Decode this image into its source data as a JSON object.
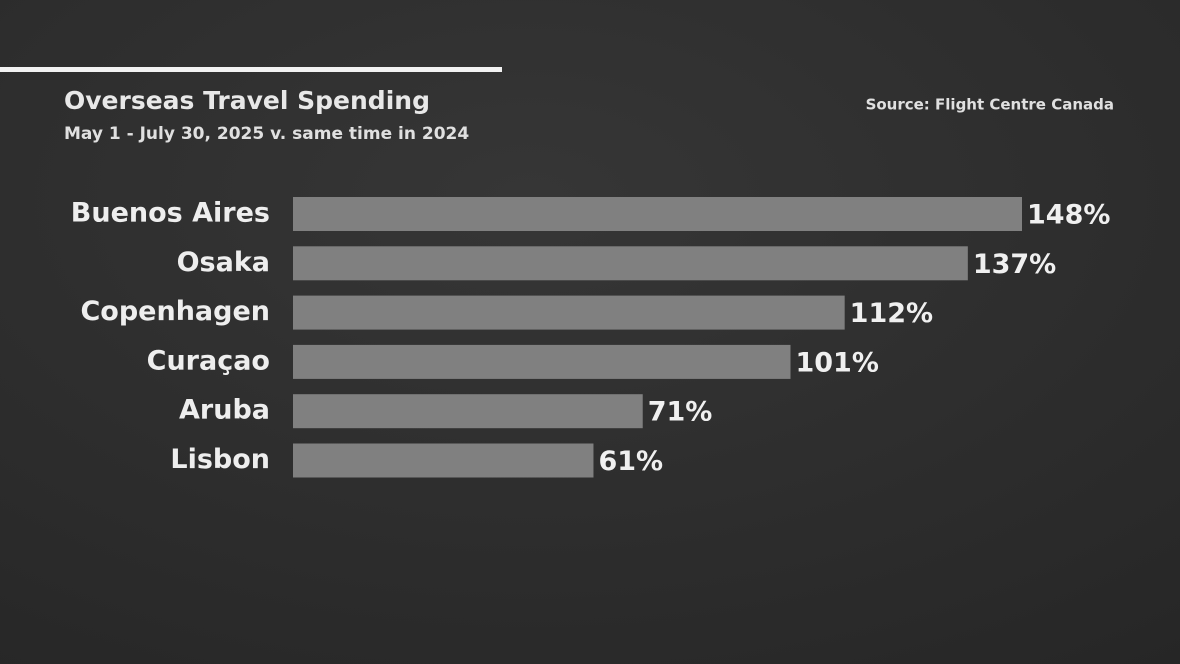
{
  "chart_data": {
    "type": "bar",
    "orientation": "horizontal",
    "title": "Overseas Travel Spending",
    "subtitle": "May 1 - July 30, 2025 v. same time in 2024",
    "source": "Source: Flight Centre Canada",
    "categories": [
      "Buenos Aires",
      "Osaka",
      "Copenhagen",
      "Curaçao",
      "Aruba",
      "Lisbon"
    ],
    "values": [
      148,
      137,
      112,
      101,
      71,
      61
    ],
    "value_labels": [
      "148%",
      "137%",
      "112%",
      "101%",
      "71%",
      "61%"
    ],
    "color": "#808080"
  }
}
